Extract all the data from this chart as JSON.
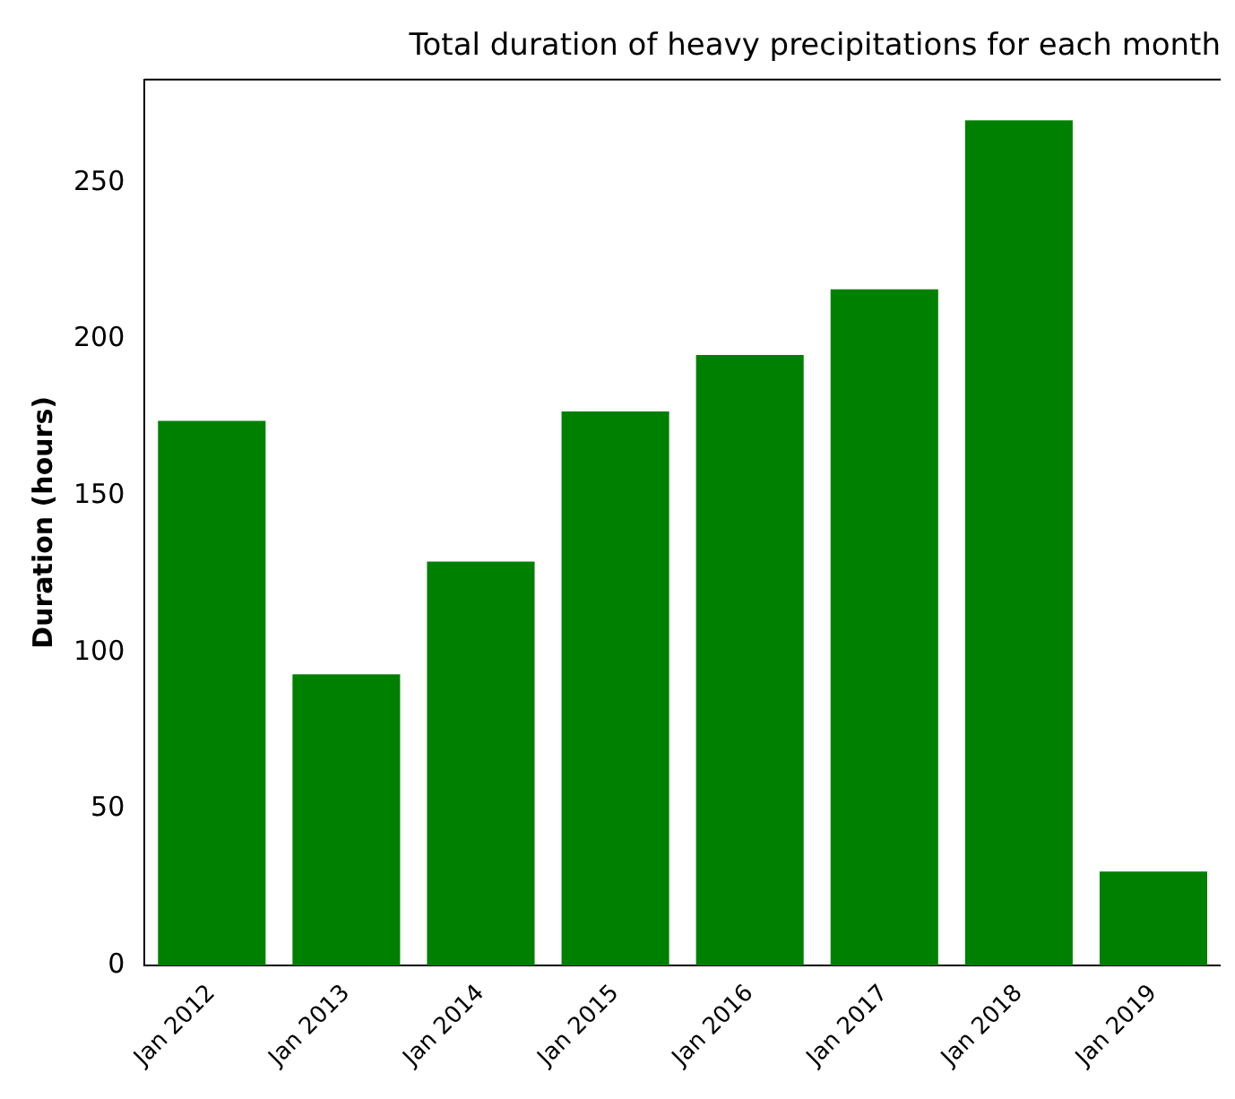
{
  "chart_data": {
    "type": "bar",
    "title": "Total duration of heavy precipitations for each month",
    "ylabel": "Duration (hours)",
    "categories": [
      "Jan 2012",
      "Jan 2013",
      "Jan 2014",
      "Jan 2015",
      "Jan 2016",
      "Jan 2017",
      "Jan 2018",
      "Jan 2019"
    ],
    "values": [
      174,
      93,
      129,
      177,
      195,
      216,
      270,
      30
    ],
    "color": "#008000",
    "ylim": [
      0,
      283
    ],
    "yticks": [
      0,
      50,
      100,
      150,
      200,
      250
    ],
    "grid": false,
    "legend": false
  }
}
